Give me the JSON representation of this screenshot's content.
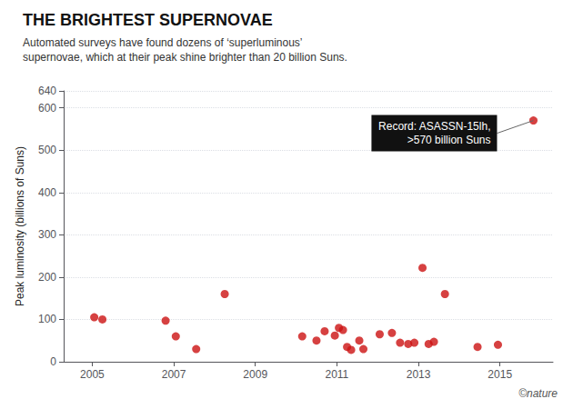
{
  "chart_data": {
    "type": "scatter",
    "title": "THE BRIGHTEST SUPERNOVAE",
    "subtitle": "Automated surveys have found dozens of ‘superluminous’\nsupernovae, which at their peak shine brighter than 20 billion Suns.",
    "ylabel": "Peak luminosity (billions of Suns)",
    "credit": "©nature",
    "color": "#cc1111",
    "grid": true,
    "xlim": [
      2004.3,
      2016.3
    ],
    "ylim": [
      0,
      640
    ],
    "xticks": [
      2005,
      2007,
      2009,
      2011,
      2013,
      2015
    ],
    "yticks": [
      0,
      100,
      200,
      300,
      400,
      500,
      600
    ],
    "x": [
      2005.05,
      2005.25,
      2006.8,
      2007.05,
      2007.55,
      2008.25,
      2010.15,
      2010.5,
      2010.7,
      2010.95,
      2011.05,
      2011.15,
      2011.25,
      2011.35,
      2011.55,
      2011.65,
      2012.05,
      2012.35,
      2012.55,
      2012.75,
      2012.9,
      2013.1,
      2013.25,
      2013.38,
      2013.65,
      2014.45,
      2014.95,
      2015.82
    ],
    "values": [
      105,
      100,
      97,
      60,
      30,
      160,
      60,
      50,
      72,
      62,
      80,
      75,
      35,
      28,
      50,
      30,
      65,
      68,
      45,
      42,
      45,
      222,
      42,
      47,
      160,
      35,
      40,
      570
    ],
    "annotations": [
      {
        "text": "Record: ASASSN-15lh,\n>570 billion Suns",
        "x": 2015.82,
        "y": 570
      }
    ]
  }
}
